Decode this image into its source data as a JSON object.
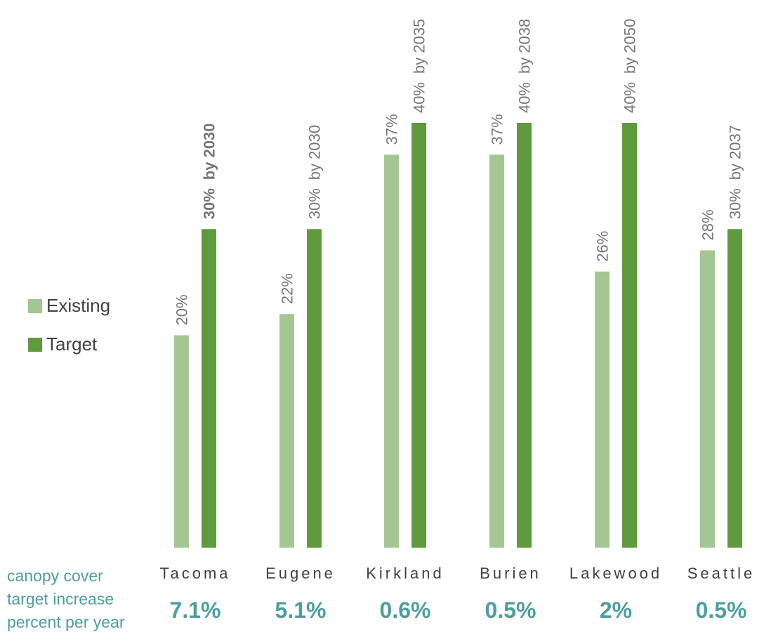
{
  "chart_data": {
    "type": "bar",
    "categories": [
      "Tacoma",
      "Eugene",
      "Kirkland",
      "Burien",
      "Lakewood",
      "Seattle"
    ],
    "series": [
      {
        "name": "Existing",
        "values": [
          20,
          22,
          37,
          37,
          26,
          28
        ],
        "color": "#a3c693"
      },
      {
        "name": "Target",
        "values": [
          30,
          30,
          40,
          40,
          40,
          30
        ],
        "color": "#5f9a3c"
      }
    ],
    "bar_labels": {
      "existing": [
        "20%",
        "22%",
        "37%",
        "37%",
        "26%",
        "28%"
      ],
      "target_pct": [
        "30%",
        "30%",
        "40%",
        "40%",
        "40%",
        "30%"
      ],
      "target_year": [
        "by 2030",
        "by 2030",
        "by 2035",
        "by 2038",
        "by 2050",
        "by 2037"
      ]
    },
    "increase_per_year": [
      "7.1%",
      "5.1%",
      "0.6%",
      "0.5%",
      "2%",
      "0.5%"
    ],
    "ylim": [
      0,
      40
    ],
    "grid": false,
    "legend_position": "left"
  },
  "footnote": {
    "line1": "canopy cover",
    "line2": "target increase",
    "line3": "percent per year"
  },
  "colors": {
    "label_gray": "#767676",
    "teal": "#4e9e9e"
  }
}
